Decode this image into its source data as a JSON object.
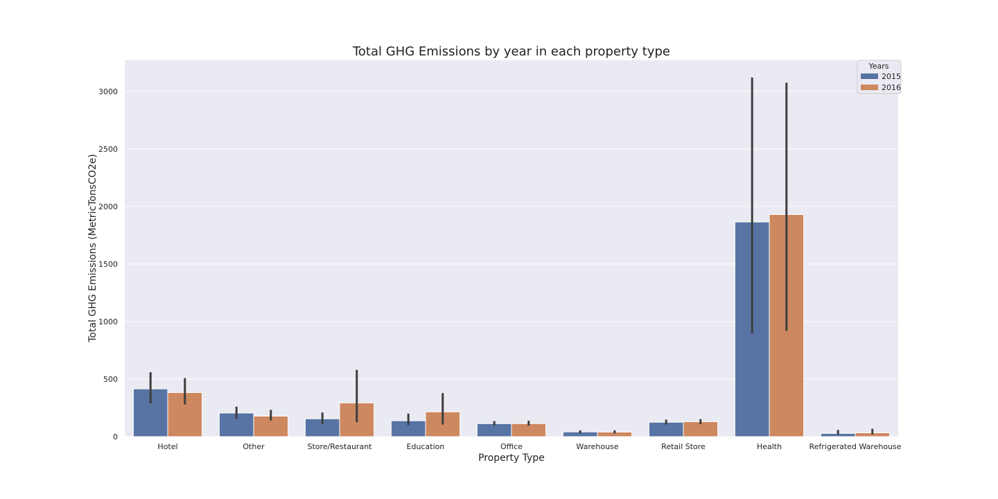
{
  "chart_data": {
    "type": "bar",
    "title": "Total GHG Emissions by year in each property type",
    "xlabel": "Property Type",
    "ylabel": "Total GHG Emissions (MetricTonsCO2e)",
    "ylim": [
      0,
      3270
    ],
    "yticks": [
      0,
      500,
      1000,
      1500,
      2000,
      2500,
      3000
    ],
    "grid": true,
    "legend": {
      "title": "Years",
      "placement": "top-right"
    },
    "categories": [
      "Hotel",
      "Other",
      "Store/Restaurant",
      "Education",
      "Office",
      "Warehouse",
      "Retail Store",
      "Health",
      "Refrigerated Warehouse"
    ],
    "series": [
      {
        "name": "2015",
        "color": "#5874a4",
        "values": [
          415,
          205,
          155,
          138,
          113,
          41,
          125,
          1865,
          28
        ],
        "ci_low": [
          290,
          155,
          110,
          100,
          98,
          28,
          105,
          895,
          18
        ],
        "ci_high": [
          560,
          260,
          210,
          200,
          135,
          55,
          148,
          3120,
          58
        ]
      },
      {
        "name": "2016",
        "color": "#cd8860",
        "values": [
          383,
          178,
          293,
          215,
          113,
          40,
          130,
          1930,
          33
        ],
        "ci_low": [
          280,
          140,
          125,
          105,
          95,
          28,
          108,
          920,
          20
        ],
        "ci_high": [
          508,
          232,
          580,
          378,
          138,
          55,
          152,
          3075,
          68
        ]
      }
    ]
  }
}
